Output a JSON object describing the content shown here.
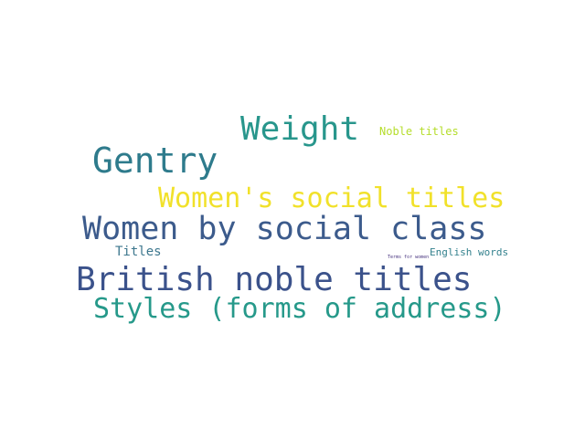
{
  "words": [
    {
      "text": "Weight",
      "color": "#28968c"
    },
    {
      "text": "Gentry",
      "color": "#2e7b8c"
    },
    {
      "text": "Women's social titles",
      "color": "#f1e12a"
    },
    {
      "text": "Women by social class",
      "color": "#3c5b8c"
    },
    {
      "text": "British noble titles",
      "color": "#3b528b"
    },
    {
      "text": "Styles (forms of address)",
      "color": "#26998a"
    },
    {
      "text": "Noble titles",
      "color": "#b5dd2b"
    },
    {
      "text": "Titles",
      "color": "#3d778e"
    },
    {
      "text": "English words",
      "color": "#33818d"
    },
    {
      "text": "Terms for women",
      "color": "#46327e"
    }
  ]
}
